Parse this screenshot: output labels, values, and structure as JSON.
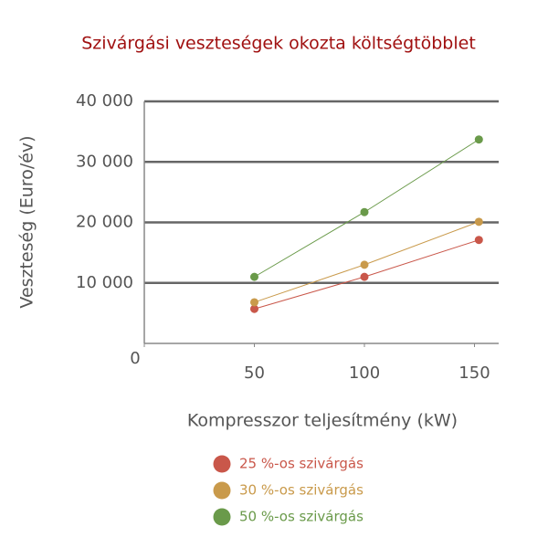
{
  "chart_data": {
    "type": "line",
    "title": "Szivárgási veszteségek okozta költségtöbblet",
    "x_label": "Kompresszor teljesítmény (kW)",
    "y_label": "Veszteség (Euro/év)",
    "x": [
      50,
      100,
      152
    ],
    "series": [
      {
        "name": "25 %-os szivárgás",
        "color": "#c9574a",
        "values": [
          5700,
          11000,
          17100
        ]
      },
      {
        "name": "30 %-os szivárgás",
        "color": "#c99a4b",
        "values": [
          6800,
          13000,
          20100
        ]
      },
      {
        "name": "50 %-os szivárgás",
        "color": "#6a9a4a",
        "values": [
          11000,
          21700,
          33700
        ]
      }
    ],
    "xlim": [
      0,
      161
    ],
    "ylim": [
      0,
      40000
    ],
    "xticks": [
      0,
      50,
      100,
      150
    ],
    "yticks": [
      {
        "value": 10000,
        "label": "10 000"
      },
      {
        "value": 20000,
        "label": "20 000"
      },
      {
        "value": 30000,
        "label": "30 000"
      },
      {
        "value": 40000,
        "label": "40 000"
      }
    ],
    "grid": true
  }
}
